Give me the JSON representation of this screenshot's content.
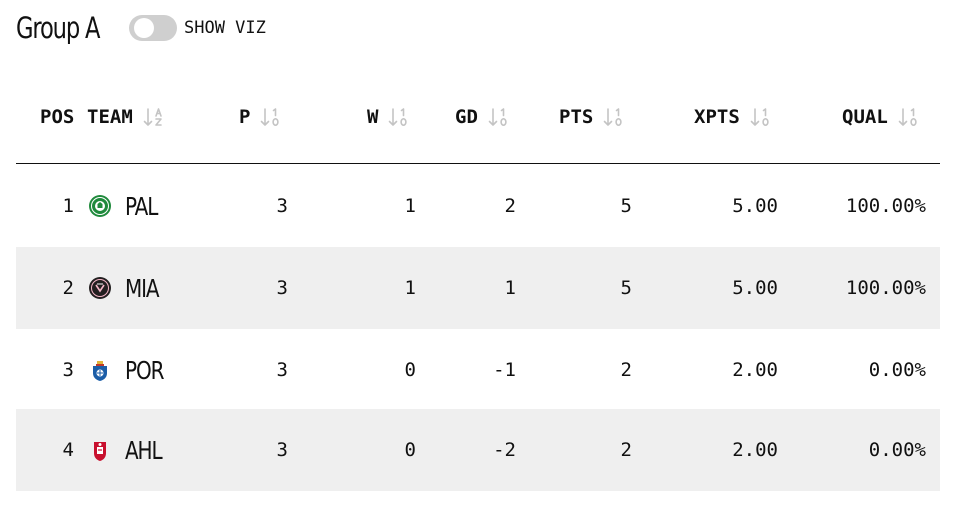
{
  "group": {
    "title": "Group A"
  },
  "toggle": {
    "label": "SHOW VIZ",
    "on": false
  },
  "columns": {
    "pos": "POS",
    "team": "TEAM",
    "p": "P",
    "w": "W",
    "gd": "GD",
    "pts": "PTS",
    "xpts": "XPTS",
    "qual": "QUAL"
  },
  "icons": {
    "sort_alpha": "sort-alpha-icon",
    "sort_numeric": "sort-numeric-icon"
  },
  "colors": {
    "row_shade": "#efefef",
    "divider": "#111111",
    "toggle_off": "#cfcfcf"
  },
  "rows": [
    {
      "pos": "1",
      "team": "PAL",
      "crest": "palmeiras-crest-icon",
      "p": "3",
      "w": "1",
      "gd": "2",
      "pts": "5",
      "xpts": "5.00",
      "qual": "100.00%"
    },
    {
      "pos": "2",
      "team": "MIA",
      "crest": "inter-miami-crest-icon",
      "p": "3",
      "w": "1",
      "gd": "1",
      "pts": "5",
      "xpts": "5.00",
      "qual": "100.00%"
    },
    {
      "pos": "3",
      "team": "POR",
      "crest": "porto-crest-icon",
      "p": "3",
      "w": "0",
      "gd": "-1",
      "pts": "2",
      "xpts": "2.00",
      "qual": "0.00%"
    },
    {
      "pos": "4",
      "team": "AHL",
      "crest": "al-ahly-crest-icon",
      "p": "3",
      "w": "0",
      "gd": "-2",
      "pts": "2",
      "xpts": "2.00",
      "qual": "0.00%"
    }
  ]
}
